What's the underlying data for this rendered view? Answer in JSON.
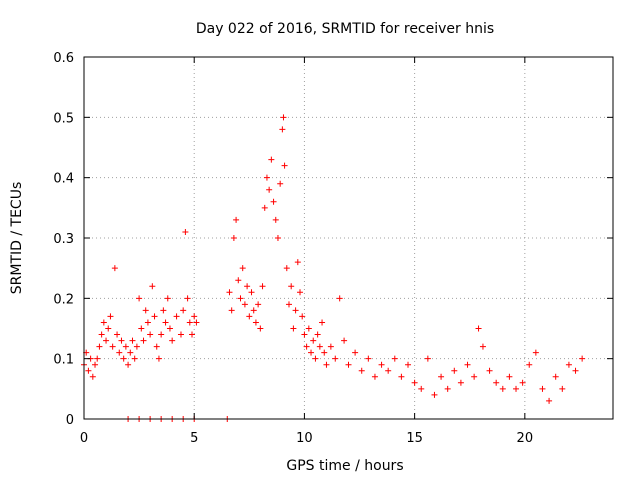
{
  "chart_data": {
    "type": "scatter",
    "title": "Day 022 of 2016, SRMTID for receiver hnis",
    "xlabel": "GPS time / hours",
    "ylabel": "SRMTID / TECUs",
    "xlim": [
      0,
      24
    ],
    "ylim": [
      0,
      0.6
    ],
    "xticks": [
      "0",
      "5",
      "10",
      "15",
      "20"
    ],
    "xtick_values": [
      0,
      5,
      10,
      15,
      20
    ],
    "yticks": [
      "0",
      "0.1",
      "0.2",
      "0.3",
      "0.4",
      "0.5",
      "0.6"
    ],
    "ytick_values": [
      0,
      0.1,
      0.2,
      0.3,
      0.4,
      0.5,
      0.6
    ],
    "grid": true,
    "marker": "+",
    "color": "#ff0000",
    "series": [
      {
        "name": "SRMTID",
        "points": [
          [
            0.0,
            0.09
          ],
          [
            0.1,
            0.11
          ],
          [
            0.2,
            0.08
          ],
          [
            0.3,
            0.1
          ],
          [
            0.4,
            0.07
          ],
          [
            0.5,
            0.09
          ],
          [
            0.6,
            0.1
          ],
          [
            0.7,
            0.12
          ],
          [
            0.8,
            0.14
          ],
          [
            0.9,
            0.16
          ],
          [
            1.0,
            0.13
          ],
          [
            1.1,
            0.15
          ],
          [
            1.2,
            0.17
          ],
          [
            1.3,
            0.12
          ],
          [
            1.4,
            0.25
          ],
          [
            1.5,
            0.14
          ],
          [
            1.6,
            0.11
          ],
          [
            1.7,
            0.13
          ],
          [
            1.8,
            0.1
          ],
          [
            1.9,
            0.12
          ],
          [
            2.0,
            0.09
          ],
          [
            2.1,
            0.11
          ],
          [
            2.2,
            0.13
          ],
          [
            2.3,
            0.1
          ],
          [
            2.4,
            0.12
          ],
          [
            2.5,
            0.2
          ],
          [
            2.6,
            0.15
          ],
          [
            2.7,
            0.13
          ],
          [
            2.8,
            0.18
          ],
          [
            2.9,
            0.16
          ],
          [
            3.0,
            0.14
          ],
          [
            3.1,
            0.22
          ],
          [
            3.2,
            0.17
          ],
          [
            3.3,
            0.12
          ],
          [
            3.4,
            0.1
          ],
          [
            3.5,
            0.14
          ],
          [
            3.6,
            0.18
          ],
          [
            3.7,
            0.16
          ],
          [
            3.8,
            0.2
          ],
          [
            3.9,
            0.15
          ],
          [
            4.0,
            0.13
          ],
          [
            4.2,
            0.17
          ],
          [
            4.4,
            0.14
          ],
          [
            4.5,
            0.18
          ],
          [
            4.6,
            0.31
          ],
          [
            4.7,
            0.2
          ],
          [
            4.8,
            0.16
          ],
          [
            4.9,
            0.14
          ],
          [
            5.0,
            0.17
          ],
          [
            5.1,
            0.16
          ],
          [
            2.0,
            0.0
          ],
          [
            2.5,
            0.0
          ],
          [
            3.0,
            0.0
          ],
          [
            3.5,
            0.0
          ],
          [
            4.0,
            0.0
          ],
          [
            4.5,
            0.0
          ],
          [
            5.0,
            0.0
          ],
          [
            6.5,
            0.0
          ],
          [
            6.6,
            0.21
          ],
          [
            6.7,
            0.18
          ],
          [
            6.8,
            0.3
          ],
          [
            6.9,
            0.33
          ],
          [
            7.0,
            0.23
          ],
          [
            7.1,
            0.2
          ],
          [
            7.2,
            0.25
          ],
          [
            7.3,
            0.19
          ],
          [
            7.4,
            0.22
          ],
          [
            7.5,
            0.17
          ],
          [
            7.6,
            0.21
          ],
          [
            7.7,
            0.18
          ],
          [
            7.8,
            0.16
          ],
          [
            7.9,
            0.19
          ],
          [
            8.0,
            0.15
          ],
          [
            8.1,
            0.22
          ],
          [
            8.2,
            0.35
          ],
          [
            8.3,
            0.4
          ],
          [
            8.4,
            0.38
          ],
          [
            8.5,
            0.43
          ],
          [
            8.6,
            0.36
          ],
          [
            8.7,
            0.33
          ],
          [
            8.8,
            0.3
          ],
          [
            8.9,
            0.39
          ],
          [
            9.0,
            0.48
          ],
          [
            9.05,
            0.5
          ],
          [
            9.1,
            0.42
          ],
          [
            9.2,
            0.25
          ],
          [
            9.3,
            0.19
          ],
          [
            9.4,
            0.22
          ],
          [
            9.5,
            0.15
          ],
          [
            9.6,
            0.18
          ],
          [
            9.7,
            0.26
          ],
          [
            9.8,
            0.21
          ],
          [
            9.9,
            0.17
          ],
          [
            10.0,
            0.14
          ],
          [
            10.1,
            0.12
          ],
          [
            10.2,
            0.15
          ],
          [
            10.3,
            0.11
          ],
          [
            10.4,
            0.13
          ],
          [
            10.5,
            0.1
          ],
          [
            10.6,
            0.14
          ],
          [
            10.7,
            0.12
          ],
          [
            10.8,
            0.16
          ],
          [
            10.9,
            0.11
          ],
          [
            11.0,
            0.09
          ],
          [
            11.2,
            0.12
          ],
          [
            11.4,
            0.1
          ],
          [
            11.6,
            0.2
          ],
          [
            11.8,
            0.13
          ],
          [
            12.0,
            0.09
          ],
          [
            12.3,
            0.11
          ],
          [
            12.6,
            0.08
          ],
          [
            12.9,
            0.1
          ],
          [
            13.2,
            0.07
          ],
          [
            13.5,
            0.09
          ],
          [
            13.8,
            0.08
          ],
          [
            14.1,
            0.1
          ],
          [
            14.4,
            0.07
          ],
          [
            14.7,
            0.09
          ],
          [
            15.0,
            0.06
          ],
          [
            15.3,
            0.05
          ],
          [
            15.6,
            0.1
          ],
          [
            15.9,
            0.04
          ],
          [
            16.2,
            0.07
          ],
          [
            16.5,
            0.05
          ],
          [
            16.8,
            0.08
          ],
          [
            17.1,
            0.06
          ],
          [
            17.4,
            0.09
          ],
          [
            17.7,
            0.07
          ],
          [
            17.9,
            0.15
          ],
          [
            18.1,
            0.12
          ],
          [
            18.4,
            0.08
          ],
          [
            18.7,
            0.06
          ],
          [
            19.0,
            0.05
          ],
          [
            19.3,
            0.07
          ],
          [
            19.6,
            0.05
          ],
          [
            19.9,
            0.06
          ],
          [
            20.2,
            0.09
          ],
          [
            20.5,
            0.11
          ],
          [
            20.8,
            0.05
          ],
          [
            21.1,
            0.03
          ],
          [
            21.4,
            0.07
          ],
          [
            21.7,
            0.05
          ],
          [
            22.0,
            0.09
          ],
          [
            22.3,
            0.08
          ],
          [
            22.6,
            0.1
          ]
        ]
      }
    ]
  }
}
